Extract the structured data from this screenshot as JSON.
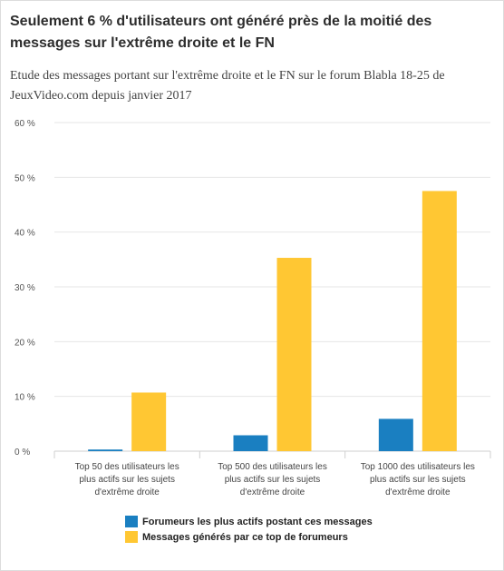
{
  "header": {
    "title": "Seulement 6 % d'utilisateurs ont généré près de la moitié des messages sur l'extrême droite et le FN",
    "subtitle": "Etude des messages portant sur l'extrême droite et le FN sur le forum Blabla 18-25 de JeuxVideo.com depuis janvier 2017"
  },
  "colors": {
    "series_blue": "#1a7fc1",
    "series_yellow": "#ffc733",
    "grid": "#e6e6e6",
    "axis": "#cfcfcf"
  },
  "chart_data": {
    "type": "bar",
    "title": "",
    "xlabel": "",
    "ylabel": "",
    "ylim": [
      0,
      60
    ],
    "y_ticks": [
      0,
      10,
      20,
      30,
      40,
      50,
      60
    ],
    "y_tick_labels": [
      "0 %",
      "10 %",
      "20 %",
      "30 %",
      "40 %",
      "50 %",
      "60 %"
    ],
    "grid": true,
    "legend_position": "bottom",
    "categories": [
      [
        "Top 50 des utilisateurs les",
        "plus actifs sur les sujets",
        "d'extrême droite"
      ],
      [
        "Top 500 des utilisateurs les",
        "plus actifs sur les sujets",
        "d'extrême droite"
      ],
      [
        "Top 1000 des utilisateurs les",
        "plus actifs sur les sujets",
        "d'extrême droite"
      ]
    ],
    "series": [
      {
        "name": "Forumeurs les plus actifs postant ces messages",
        "color": "#1a7fc1",
        "values": [
          0.3,
          2.9,
          5.9
        ]
      },
      {
        "name": "Messages générés par ce top de forumeurs",
        "color": "#ffc733",
        "values": [
          10.7,
          35.3,
          47.5
        ]
      }
    ]
  }
}
